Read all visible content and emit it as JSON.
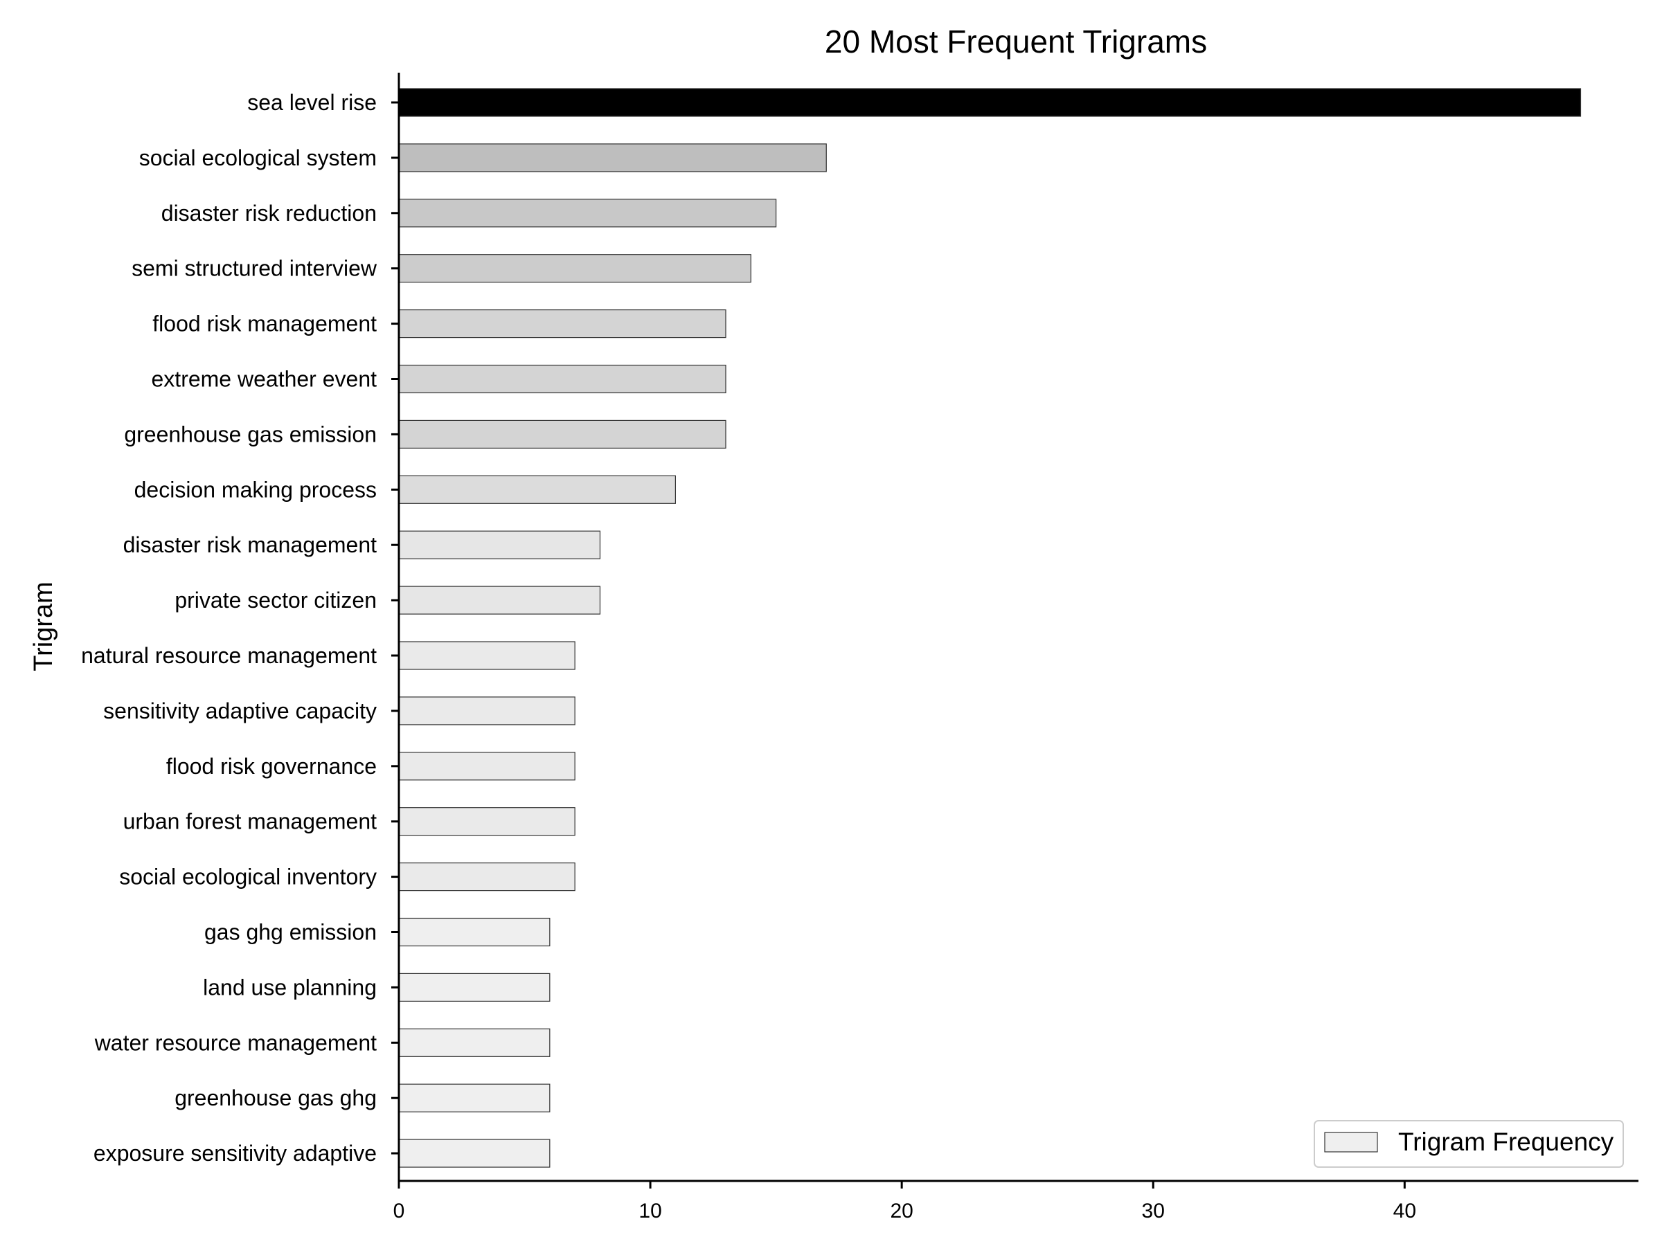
{
  "chart_data": {
    "type": "bar",
    "orientation": "horizontal",
    "title": "20 Most Frequent Trigrams",
    "xlabel": "",
    "ylabel": "Trigram",
    "xlim": [
      0,
      49.3
    ],
    "xticks": [
      0,
      10,
      20,
      30,
      40
    ],
    "grid": false,
    "legend": {
      "position": "bottom-right",
      "entries": [
        "Trigram Frequency"
      ]
    },
    "categories": [
      "sea level rise",
      "social ecological system",
      "disaster risk reduction",
      "semi structured interview",
      "flood risk management",
      "extreme weather event",
      "greenhouse gas emission",
      "decision making process",
      "disaster risk management",
      "private sector citizen",
      "natural resource management",
      "sensitivity adaptive capacity",
      "flood risk governance",
      "urban forest management",
      "social ecological inventory",
      "gas ghg emission",
      "land use planning",
      "water resource management",
      "greenhouse gas ghg",
      "exposure sensitivity adaptive"
    ],
    "series": [
      {
        "name": "Trigram Frequency",
        "values": [
          47,
          17,
          15,
          14,
          13,
          13,
          13,
          11,
          8,
          8,
          7,
          7,
          7,
          7,
          7,
          6,
          6,
          6,
          6,
          6
        ],
        "colors": [
          "#000000",
          "#bebebe",
          "#c8c8c8",
          "#cccccc",
          "#d4d4d4",
          "#d4d4d4",
          "#d4d4d4",
          "#dcdcdc",
          "#e6e6e6",
          "#e6e6e6",
          "#eaeaea",
          "#eaeaea",
          "#eaeaea",
          "#eaeaea",
          "#eaeaea",
          "#efefef",
          "#efefef",
          "#efefef",
          "#efefef",
          "#efefef"
        ]
      }
    ],
    "legend_color": "#efefef"
  }
}
